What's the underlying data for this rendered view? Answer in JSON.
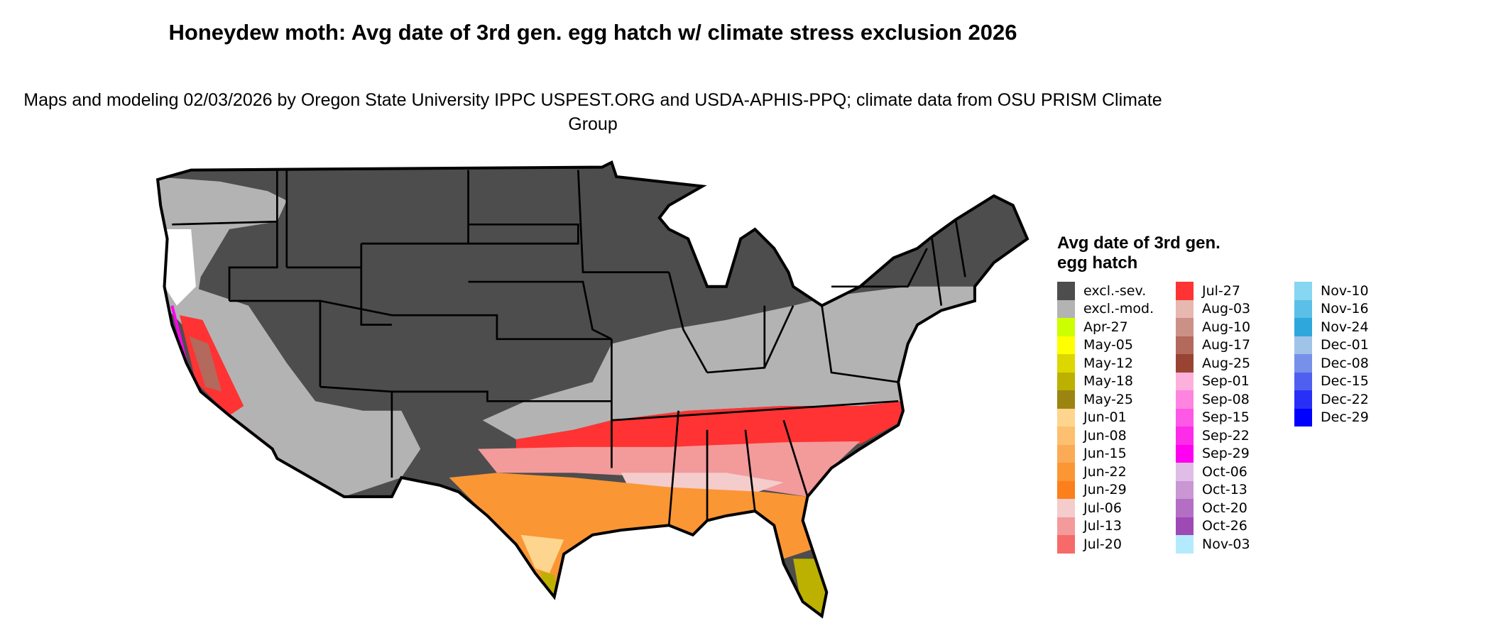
{
  "title": "Honeydew moth: Avg date of 3rd gen. egg hatch w/ climate stress exclusion 2026",
  "subtitle": "Maps and modeling 02/03/2026 by Oregon State University IPPC USPEST.ORG and USDA-APHIS-PPQ; climate data from OSU PRISM Climate Group",
  "legend": {
    "title": "Avg date of 3rd gen. egg hatch",
    "columns": [
      [
        {
          "label": "excl.-sev.",
          "color": "#4d4d4d"
        },
        {
          "label": "excl.-mod.",
          "color": "#b3b3b3"
        },
        {
          "label": "Apr-27",
          "color": "#ccff00"
        },
        {
          "label": "May-05",
          "color": "#ffff00"
        },
        {
          "label": "May-12",
          "color": "#ddd700"
        },
        {
          "label": "May-18",
          "color": "#bcb100"
        },
        {
          "label": "May-25",
          "color": "#9b8510"
        },
        {
          "label": "Jun-01",
          "color": "#fed58e"
        },
        {
          "label": "Jun-08",
          "color": "#fdc070"
        },
        {
          "label": "Jun-15",
          "color": "#fbaa55"
        },
        {
          "label": "Jun-22",
          "color": "#fb9635"
        },
        {
          "label": "Jun-29",
          "color": "#fb7f1b"
        },
        {
          "label": "Jul-06",
          "color": "#f4cccc"
        },
        {
          "label": "Jul-13",
          "color": "#f39a9a"
        },
        {
          "label": "Jul-20",
          "color": "#f66a6a"
        }
      ],
      [
        {
          "label": "Jul-27",
          "color": "#ff3333"
        },
        {
          "label": "Aug-03",
          "color": "#e6b8b0"
        },
        {
          "label": "Aug-10",
          "color": "#cc9186"
        },
        {
          "label": "Aug-17",
          "color": "#b3695c"
        },
        {
          "label": "Aug-25",
          "color": "#994433"
        },
        {
          "label": "Sep-01",
          "color": "#fdb0dc"
        },
        {
          "label": "Sep-08",
          "color": "#fe84e0"
        },
        {
          "label": "Sep-15",
          "color": "#fd58e6"
        },
        {
          "label": "Sep-22",
          "color": "#fd2ce8"
        },
        {
          "label": "Sep-29",
          "color": "#ff00f0"
        },
        {
          "label": "Oct-06",
          "color": "#e0bde6"
        },
        {
          "label": "Oct-13",
          "color": "#ca96d4"
        },
        {
          "label": "Oct-20",
          "color": "#b46fc4"
        },
        {
          "label": "Oct-26",
          "color": "#9e4ab5"
        },
        {
          "label": "Nov-03",
          "color": "#b3ebfd"
        }
      ],
      [
        {
          "label": "Nov-10",
          "color": "#87d6f2"
        },
        {
          "label": "Nov-16",
          "color": "#5bbfe8"
        },
        {
          "label": "Nov-24",
          "color": "#2ea8dc"
        },
        {
          "label": "Dec-01",
          "color": "#a0c4e8"
        },
        {
          "label": "Dec-08",
          "color": "#7790ea"
        },
        {
          "label": "Dec-15",
          "color": "#4f60f0"
        },
        {
          "label": "Dec-22",
          "color": "#2830f8"
        },
        {
          "label": "Dec-29",
          "color": "#0000ff"
        }
      ]
    ]
  }
}
